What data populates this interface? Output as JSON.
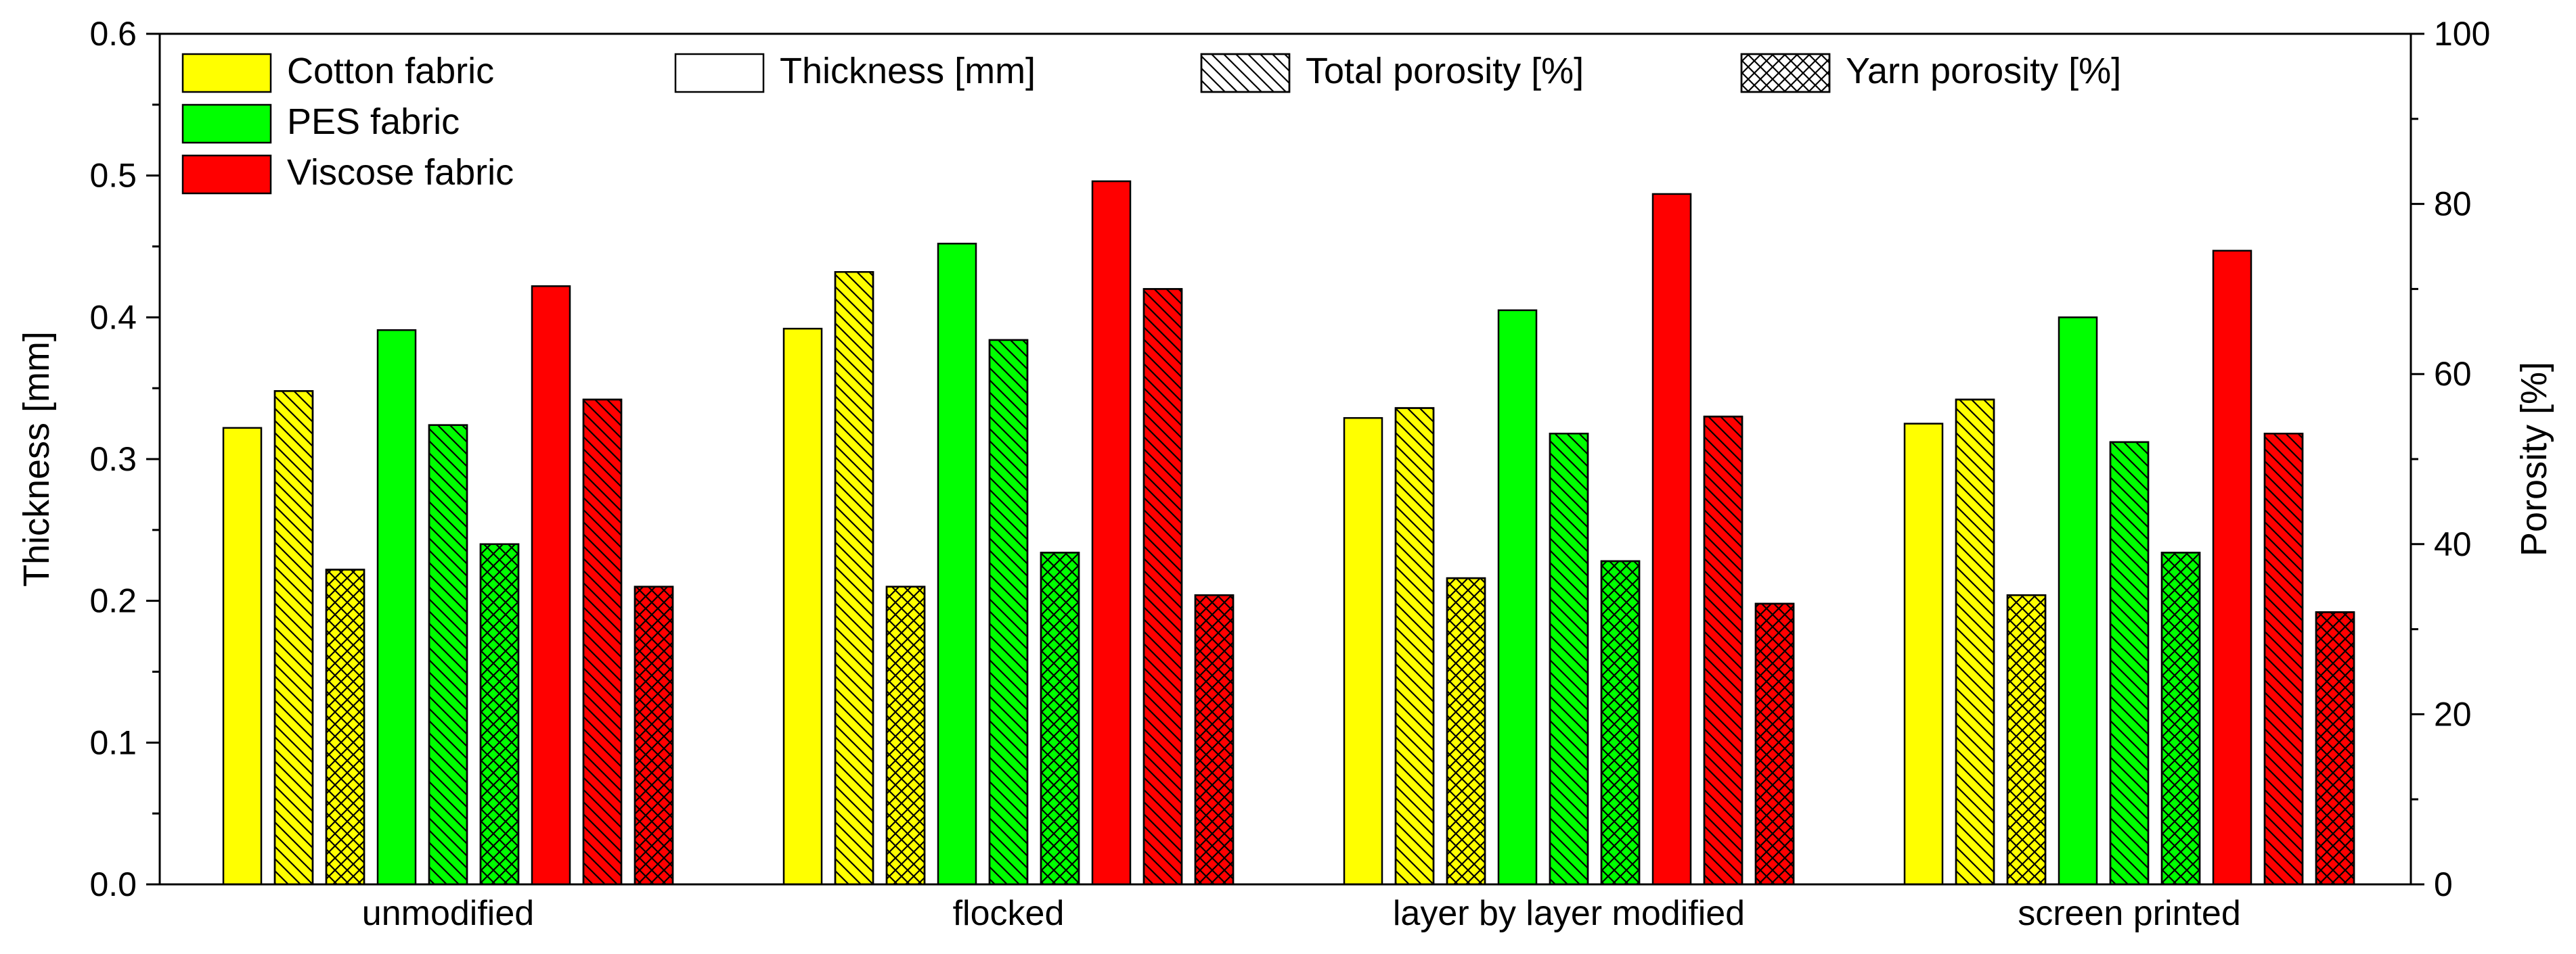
{
  "chart_data": {
    "type": "bar",
    "categories": [
      "unmodified",
      "flocked",
      "layer by layer modified",
      "screen printed"
    ],
    "left_axis": {
      "label": "Thickness [mm]",
      "range": [
        0,
        0.6
      ],
      "ticks": [
        "0.0",
        "0.1",
        "0.2",
        "0.3",
        "0.4",
        "0.5",
        "0.6"
      ]
    },
    "right_axis": {
      "label": "Porosity [%]",
      "range": [
        0,
        100
      ],
      "ticks": [
        "0",
        "20",
        "40",
        "60",
        "80",
        "100"
      ]
    },
    "fabrics": [
      {
        "name": "Cotton fabric",
        "color": "#ffff00"
      },
      {
        "name": "PES fabric",
        "color": "#00ff00"
      },
      {
        "name": "Viscose fabric",
        "color": "#ff0000"
      }
    ],
    "measures": [
      {
        "name": "Thickness [mm]",
        "pattern": "solid",
        "axis": "left"
      },
      {
        "name": "Total porosity [%]",
        "pattern": "diagonal",
        "axis": "right"
      },
      {
        "name": "Yarn porosity [%]",
        "pattern": "crosshatch",
        "axis": "right"
      }
    ],
    "series": [
      {
        "fabric": "Cotton fabric",
        "measure": "Thickness [mm]",
        "values": [
          0.322,
          0.392,
          0.329,
          0.325
        ]
      },
      {
        "fabric": "Cotton fabric",
        "measure": "Total porosity [%]",
        "values": [
          58,
          72,
          56,
          57
        ]
      },
      {
        "fabric": "Cotton fabric",
        "measure": "Yarn porosity [%]",
        "values": [
          37,
          35,
          36,
          34
        ]
      },
      {
        "fabric": "PES fabric",
        "measure": "Thickness [mm]",
        "values": [
          0.391,
          0.452,
          0.405,
          0.4
        ]
      },
      {
        "fabric": "PES fabric",
        "measure": "Total porosity [%]",
        "values": [
          54,
          64,
          53,
          52
        ]
      },
      {
        "fabric": "PES fabric",
        "measure": "Yarn porosity [%]",
        "values": [
          40,
          39,
          38,
          39
        ]
      },
      {
        "fabric": "Viscose fabric",
        "measure": "Thickness [mm]",
        "values": [
          0.422,
          0.496,
          0.487,
          0.447
        ]
      },
      {
        "fabric": "Viscose fabric",
        "measure": "Total porosity [%]",
        "values": [
          57,
          70,
          55,
          53
        ]
      },
      {
        "fabric": "Viscose fabric",
        "measure": "Yarn porosity [%]",
        "values": [
          35,
          34,
          33,
          32
        ]
      }
    ],
    "legend": {
      "fabric_entries": [
        "Cotton fabric",
        "PES fabric",
        "Viscose fabric"
      ],
      "measure_entries": [
        "Thickness [mm]",
        "Total porosity [%]",
        "Yarn porosity [%]"
      ],
      "position": "top"
    }
  }
}
